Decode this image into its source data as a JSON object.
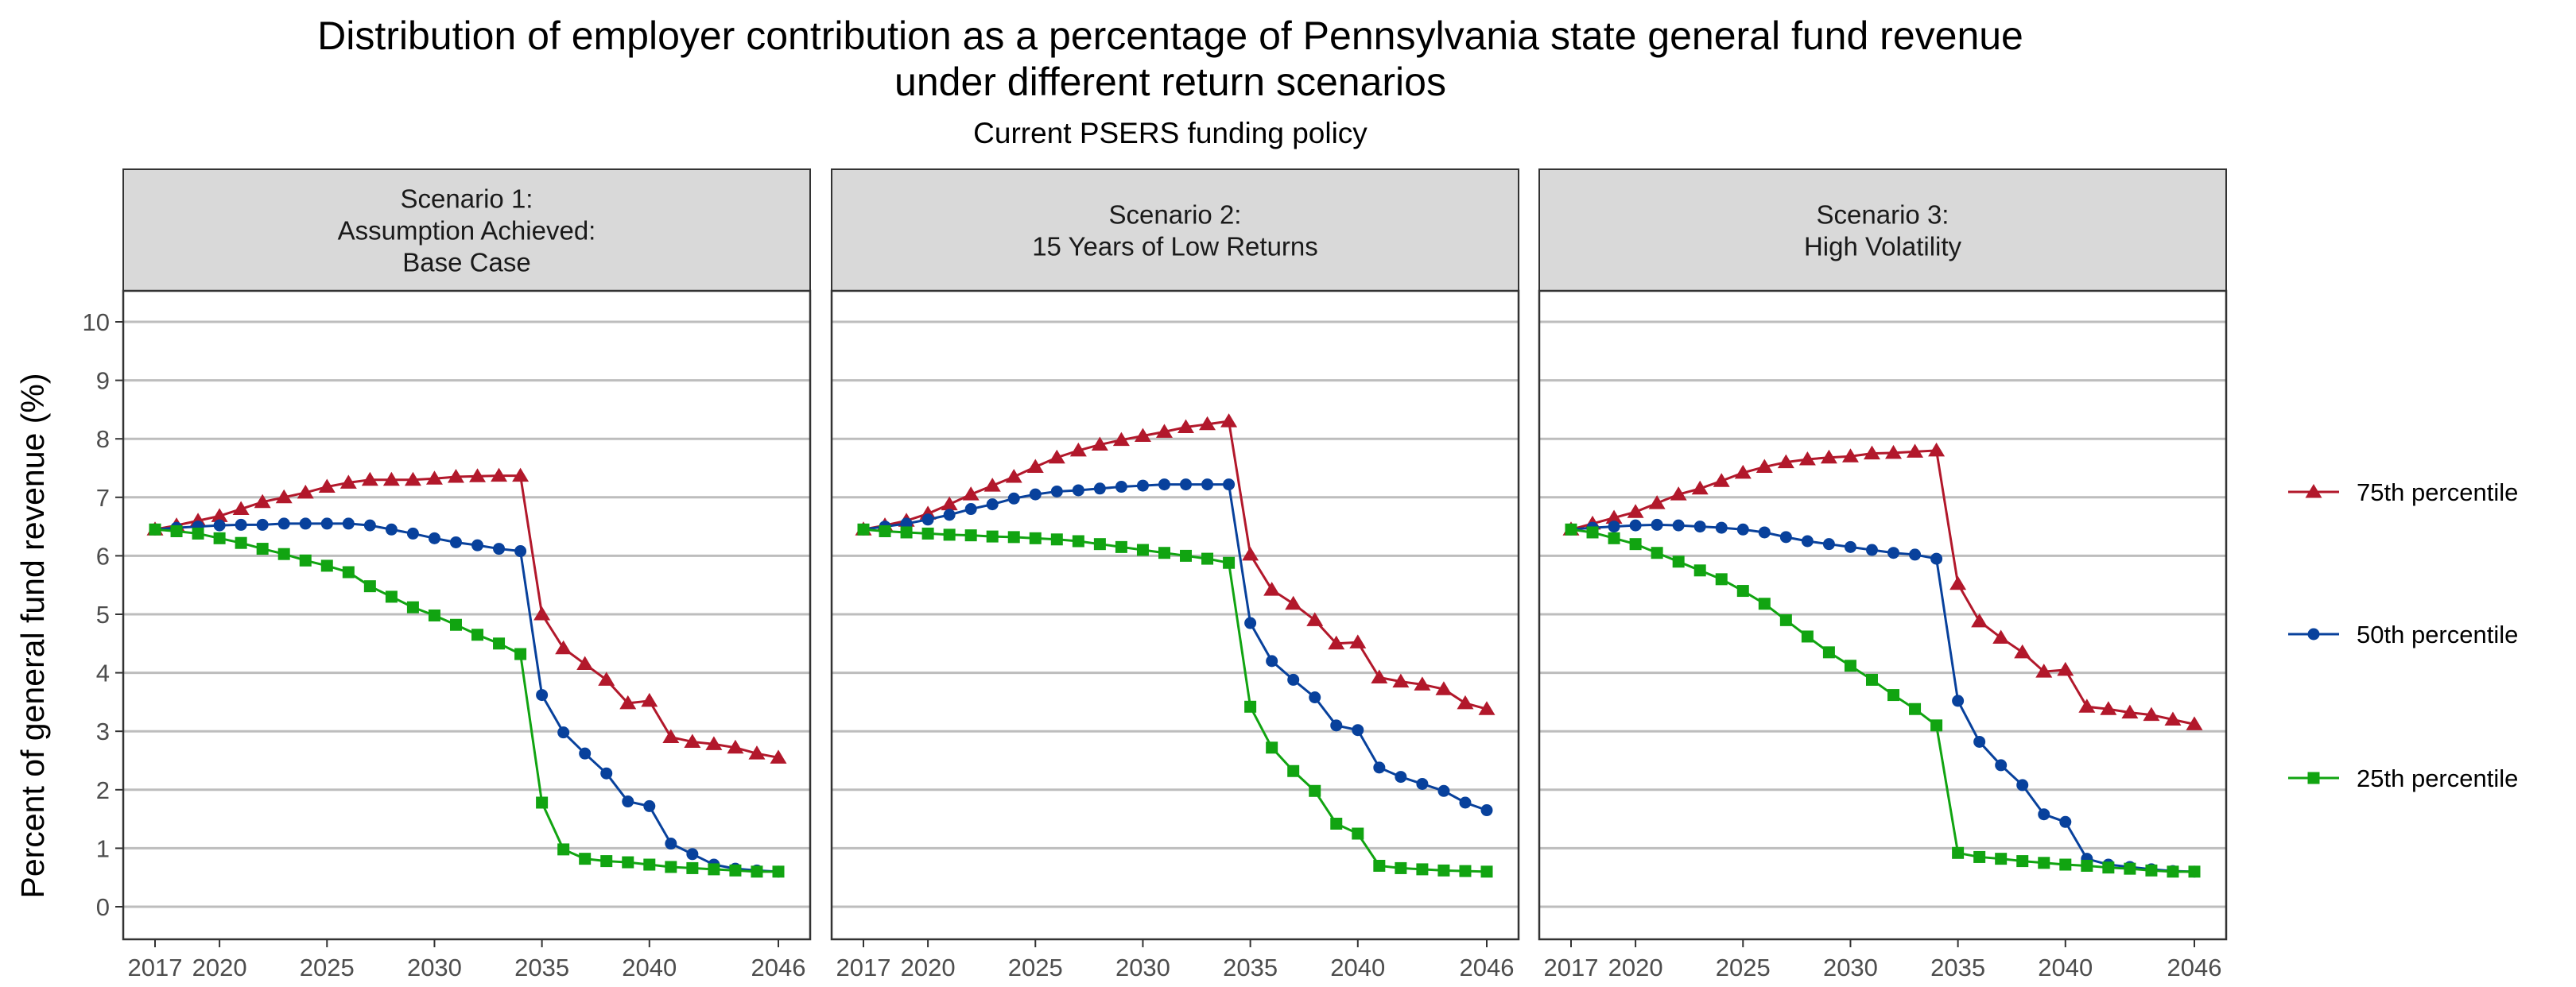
{
  "title_line1": "Distribution of employer contribution as a percentage of Pennsylvania state general fund revenue",
  "title_line2": "under different return scenarios",
  "subtitle": "Current PSERS funding policy",
  "colors": {
    "p75": "#B2182B",
    "p50": "#08419C",
    "p25": "#11A411"
  },
  "chart_data": {
    "type": "line",
    "ylabel": "Percent of general fund revenue (%)",
    "xlabel": "",
    "ylim": [
      0,
      10
    ],
    "yticks": [
      0,
      1,
      2,
      3,
      4,
      5,
      6,
      7,
      8,
      9,
      10
    ],
    "xticks": [
      2017,
      2020,
      2025,
      2030,
      2035,
      2040,
      2046
    ],
    "grid": true,
    "legend_position": "right",
    "x": [
      2017,
      2018,
      2019,
      2020,
      2021,
      2022,
      2023,
      2024,
      2025,
      2026,
      2027,
      2028,
      2029,
      2030,
      2031,
      2032,
      2033,
      2034,
      2035,
      2036,
      2037,
      2038,
      2039,
      2040,
      2041,
      2042,
      2043,
      2044,
      2045,
      2046
    ],
    "series_meta": [
      {
        "key": "p75",
        "name": "75th percentile",
        "marker": "triangle"
      },
      {
        "key": "p50",
        "name": "50th percentile",
        "marker": "circle"
      },
      {
        "key": "p25",
        "name": "25th percentile",
        "marker": "square"
      }
    ],
    "panels": [
      {
        "title_lines": [
          "Scenario 1:",
          "Assumption Achieved:",
          "Base Case"
        ],
        "series": {
          "p75": [
            6.45,
            6.52,
            6.6,
            6.68,
            6.8,
            6.92,
            7.0,
            7.08,
            7.18,
            7.25,
            7.3,
            7.3,
            7.3,
            7.32,
            7.35,
            7.36,
            7.37,
            7.37,
            5.0,
            4.42,
            4.15,
            3.88,
            3.48,
            3.52,
            2.9,
            2.82,
            2.78,
            2.72,
            2.62,
            2.55
          ],
          "p50": [
            6.45,
            6.48,
            6.5,
            6.52,
            6.53,
            6.53,
            6.55,
            6.55,
            6.55,
            6.55,
            6.52,
            6.45,
            6.38,
            6.3,
            6.23,
            6.18,
            6.12,
            6.08,
            3.62,
            2.98,
            2.62,
            2.28,
            1.8,
            1.72,
            1.08,
            0.9,
            0.72,
            0.65,
            0.62,
            0.6
          ],
          "p25": [
            6.45,
            6.42,
            6.38,
            6.3,
            6.22,
            6.12,
            6.03,
            5.92,
            5.83,
            5.72,
            5.48,
            5.3,
            5.12,
            4.98,
            4.82,
            4.65,
            4.5,
            4.32,
            1.78,
            0.98,
            0.82,
            0.78,
            0.76,
            0.72,
            0.68,
            0.66,
            0.64,
            0.62,
            0.6,
            0.6
          ]
        }
      },
      {
        "title_lines": [
          "Scenario 2:",
          "15 Years of Low Returns"
        ],
        "series": {
          "p75": [
            6.45,
            6.52,
            6.6,
            6.72,
            6.88,
            7.05,
            7.2,
            7.35,
            7.52,
            7.68,
            7.8,
            7.9,
            7.98,
            8.05,
            8.12,
            8.2,
            8.25,
            8.3,
            6.02,
            5.42,
            5.18,
            4.9,
            4.5,
            4.52,
            3.92,
            3.85,
            3.8,
            3.72,
            3.48,
            3.38
          ],
          "p50": [
            6.45,
            6.5,
            6.55,
            6.62,
            6.7,
            6.8,
            6.88,
            6.98,
            7.05,
            7.1,
            7.12,
            7.15,
            7.18,
            7.2,
            7.22,
            7.22,
            7.22,
            7.22,
            4.85,
            4.2,
            3.88,
            3.58,
            3.1,
            3.02,
            2.38,
            2.22,
            2.1,
            1.98,
            1.78,
            1.65
          ],
          "p25": [
            6.45,
            6.42,
            6.4,
            6.38,
            6.36,
            6.35,
            6.33,
            6.32,
            6.3,
            6.28,
            6.25,
            6.2,
            6.15,
            6.1,
            6.05,
            6.0,
            5.95,
            5.88,
            3.42,
            2.72,
            2.32,
            1.98,
            1.42,
            1.25,
            0.7,
            0.66,
            0.64,
            0.62,
            0.61,
            0.6
          ]
        }
      },
      {
        "title_lines": [
          "Scenario 3:",
          "High Volatility"
        ],
        "series": {
          "p75": [
            6.45,
            6.55,
            6.65,
            6.75,
            6.9,
            7.05,
            7.15,
            7.28,
            7.42,
            7.52,
            7.6,
            7.65,
            7.68,
            7.7,
            7.75,
            7.76,
            7.78,
            7.8,
            5.52,
            4.88,
            4.6,
            4.35,
            4.02,
            4.05,
            3.42,
            3.38,
            3.32,
            3.28,
            3.2,
            3.12
          ],
          "p50": [
            6.45,
            6.48,
            6.5,
            6.52,
            6.53,
            6.52,
            6.5,
            6.48,
            6.45,
            6.4,
            6.32,
            6.25,
            6.2,
            6.15,
            6.1,
            6.05,
            6.02,
            5.95,
            3.52,
            2.82,
            2.42,
            2.08,
            1.58,
            1.45,
            0.82,
            0.72,
            0.68,
            0.64,
            0.61,
            0.6
          ],
          "p25": [
            6.45,
            6.4,
            6.3,
            6.2,
            6.05,
            5.9,
            5.75,
            5.6,
            5.4,
            5.18,
            4.9,
            4.62,
            4.35,
            4.12,
            3.88,
            3.62,
            3.38,
            3.1,
            0.92,
            0.85,
            0.82,
            0.78,
            0.75,
            0.72,
            0.7,
            0.67,
            0.65,
            0.62,
            0.6,
            0.6
          ]
        }
      }
    ]
  }
}
